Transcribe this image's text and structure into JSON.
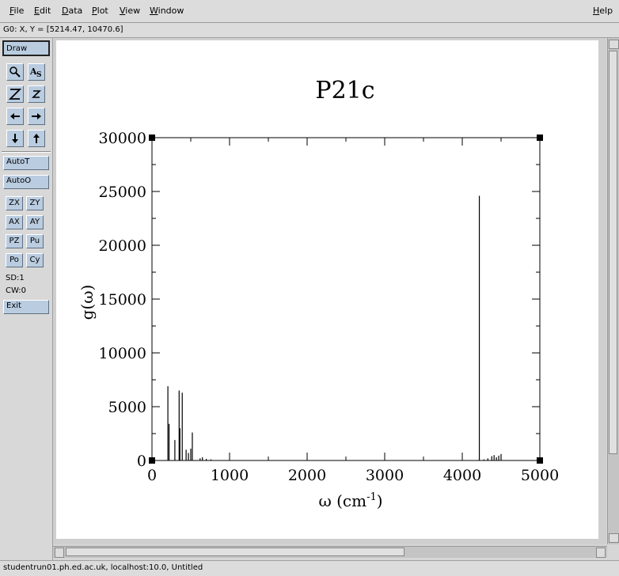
{
  "menu": {
    "file": "File",
    "edit": "Edit",
    "data": "Data",
    "plot": "Plot",
    "view": "View",
    "window": "Window",
    "help": "Help"
  },
  "coordinate_readout": "G0: X, Y = [5214.47, 10470.6]",
  "toolbar": {
    "draw": "Draw",
    "icon_buttons": [
      "zoom-icon",
      "autoscale-text-icon",
      "zoom-in-z-icon",
      "zoom-out-z-icon",
      "arrow-left-icon",
      "arrow-right-icon",
      "arrow-down-icon",
      "arrow-up-icon"
    ],
    "autot": "AutoT",
    "autoo": "AutoO",
    "small_buttons": [
      "ZX",
      "ZY",
      "AX",
      "AY",
      "PZ",
      "Pu",
      "Po",
      "Cy"
    ],
    "sd": "SD:1",
    "cw": "CW:0",
    "exit": "Exit"
  },
  "status_bar": "studentrun01.ph.ed.ac.uk, localhost:10.0, Untitled",
  "chart_data": {
    "type": "bar",
    "title": "P21c",
    "xlabel": "ω (cm",
    "xlabel_sup": "-1",
    "xlabel_close": ")",
    "ylabel": "g(ω)",
    "xlim": [
      0,
      5000
    ],
    "ylim": [
      0,
      30000
    ],
    "x_ticks": [
      "0",
      "1000",
      "2000",
      "3000",
      "4000",
      "5000"
    ],
    "y_ticks": [
      "0",
      "5000",
      "10000",
      "15000",
      "20000",
      "25000",
      "30000"
    ],
    "grid": false,
    "x": [
      205,
      220,
      295,
      350,
      360,
      390,
      440,
      470,
      500,
      520,
      620,
      650,
      700,
      760,
      4220,
      4280,
      4330,
      4380,
      4410,
      4440,
      4470,
      4500
    ],
    "values": [
      6900,
      3400,
      1900,
      6500,
      3000,
      6300,
      1000,
      700,
      1100,
      2600,
      200,
      300,
      150,
      100,
      24600,
      100,
      200,
      400,
      500,
      300,
      450,
      600
    ]
  }
}
